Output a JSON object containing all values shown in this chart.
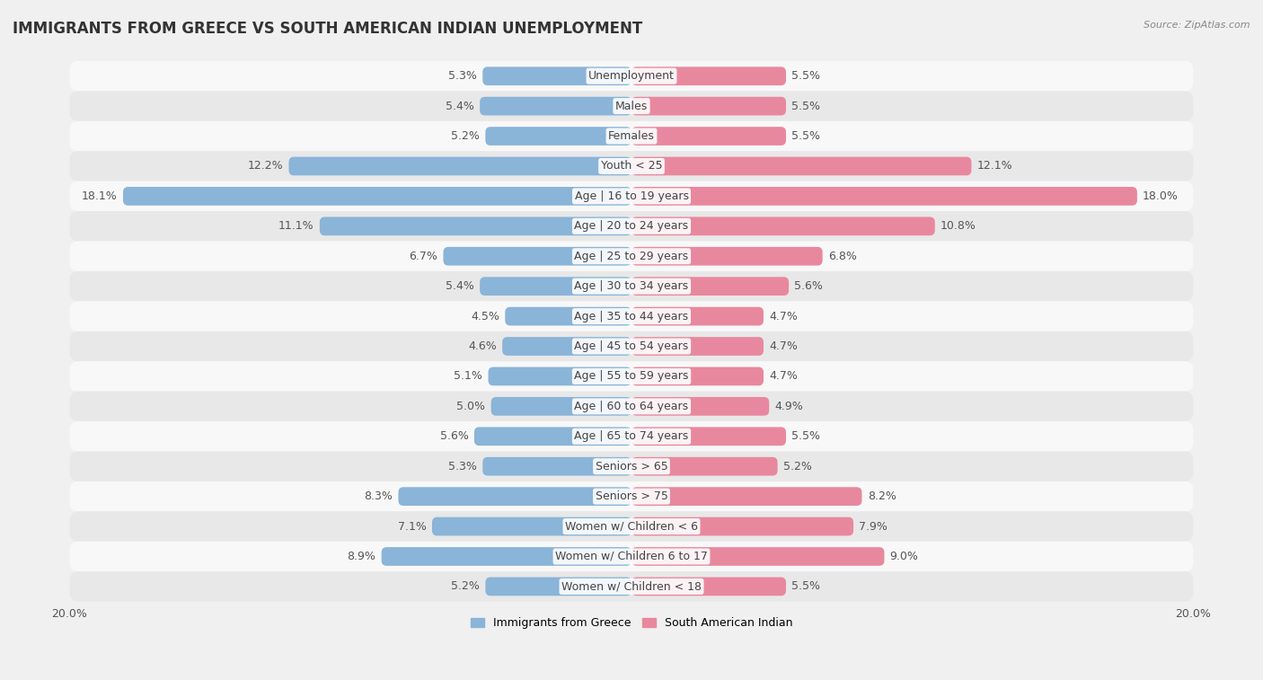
{
  "title": "IMMIGRANTS FROM GREECE VS SOUTH AMERICAN INDIAN UNEMPLOYMENT",
  "source": "Source: ZipAtlas.com",
  "categories": [
    "Unemployment",
    "Males",
    "Females",
    "Youth < 25",
    "Age | 16 to 19 years",
    "Age | 20 to 24 years",
    "Age | 25 to 29 years",
    "Age | 30 to 34 years",
    "Age | 35 to 44 years",
    "Age | 45 to 54 years",
    "Age | 55 to 59 years",
    "Age | 60 to 64 years",
    "Age | 65 to 74 years",
    "Seniors > 65",
    "Seniors > 75",
    "Women w/ Children < 6",
    "Women w/ Children 6 to 17",
    "Women w/ Children < 18"
  ],
  "greece_values": [
    5.3,
    5.4,
    5.2,
    12.2,
    18.1,
    11.1,
    6.7,
    5.4,
    4.5,
    4.6,
    5.1,
    5.0,
    5.6,
    5.3,
    8.3,
    7.1,
    8.9,
    5.2
  ],
  "indian_values": [
    5.5,
    5.5,
    5.5,
    12.1,
    18.0,
    10.8,
    6.8,
    5.6,
    4.7,
    4.7,
    4.7,
    4.9,
    5.5,
    5.2,
    8.2,
    7.9,
    9.0,
    5.5
  ],
  "greece_color": "#8ab4d8",
  "indian_color": "#e8889e",
  "background_color": "#f0f0f0",
  "row_color_even": "#f8f8f8",
  "row_color_odd": "#e8e8e8",
  "max_val": 20.0,
  "title_fontsize": 12,
  "label_fontsize": 9,
  "tick_fontsize": 9,
  "value_fontsize": 9
}
